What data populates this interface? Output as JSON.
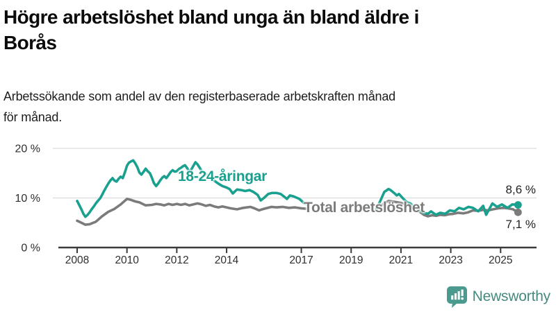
{
  "header": {
    "title_lines": [
      "Högre arbetslöshet bland unga än bland äldre i",
      "Borås"
    ],
    "subtitle_lines": [
      "Arbetssökande som andel av den registerbaserade arbetskraften månad",
      "för månad."
    ]
  },
  "chart_data": {
    "type": "line",
    "title": "Högre arbetslöshet bland unga än bland äldre i Borås",
    "subtitle": "Arbetssökande som andel av den registerbaserade arbetskraften månad för månad.",
    "unit": "%",
    "grid": true,
    "legend_position": "inline-labels-on-lines",
    "x_axis": {
      "range": [
        2007.25,
        2026.4
      ],
      "ticks": [
        {
          "year": 2008,
          "label": "2008"
        },
        {
          "year": 2010,
          "label": "2010"
        },
        {
          "year": 2012,
          "label": "2012"
        },
        {
          "year": 2014,
          "label": "2014"
        },
        {
          "year": 2017,
          "label": "2017"
        },
        {
          "year": 2019,
          "label": "2019"
        },
        {
          "year": 2021,
          "label": "2021"
        },
        {
          "year": 2023,
          "label": "2023"
        },
        {
          "year": 2025,
          "label": "2025"
        }
      ]
    },
    "y_axis": {
      "range": [
        0,
        20
      ],
      "ticks": [
        {
          "value": 0,
          "label": "0 %"
        },
        {
          "value": 10,
          "label": "10 %"
        },
        {
          "value": 20,
          "label": "20 %"
        }
      ]
    },
    "series": [
      {
        "name": "18-24-åringar",
        "color": "#1AA08F",
        "end_label": "8,6 %",
        "end_value": 8.6,
        "segments": [
          [
            [
              2008.0,
              9.4
            ],
            [
              2008.08,
              8.6
            ],
            [
              2008.17,
              7.7
            ],
            [
              2008.25,
              6.8
            ],
            [
              2008.33,
              6.2
            ],
            [
              2008.42,
              6.6
            ],
            [
              2008.5,
              7.1
            ],
            [
              2008.58,
              7.7
            ],
            [
              2008.67,
              8.3
            ],
            [
              2008.75,
              8.9
            ],
            [
              2008.83,
              9.4
            ],
            [
              2008.92,
              9.9
            ],
            [
              2009.0,
              10.6
            ],
            [
              2009.08,
              11.4
            ],
            [
              2009.17,
              12.2
            ],
            [
              2009.25,
              12.9
            ],
            [
              2009.33,
              13.5
            ],
            [
              2009.42,
              14.0
            ],
            [
              2009.5,
              13.5
            ],
            [
              2009.58,
              13.3
            ],
            [
              2009.67,
              13.9
            ],
            [
              2009.75,
              14.3
            ],
            [
              2009.83,
              14.0
            ],
            [
              2009.92,
              15.2
            ],
            [
              2010.0,
              16.5
            ],
            [
              2010.08,
              17.1
            ],
            [
              2010.17,
              17.4
            ],
            [
              2010.25,
              17.6
            ],
            [
              2010.33,
              17.0
            ],
            [
              2010.42,
              16.2
            ],
            [
              2010.5,
              15.1
            ],
            [
              2010.58,
              14.7
            ],
            [
              2010.67,
              15.3
            ],
            [
              2010.75,
              15.9
            ],
            [
              2010.83,
              15.4
            ],
            [
              2010.92,
              15.0
            ],
            [
              2011.0,
              14.1
            ],
            [
              2011.08,
              13.0
            ],
            [
              2011.17,
              12.4
            ],
            [
              2011.25,
              12.9
            ],
            [
              2011.33,
              13.5
            ],
            [
              2011.42,
              14.1
            ],
            [
              2011.5,
              14.4
            ],
            [
              2011.58,
              14.0
            ],
            [
              2011.67,
              14.6
            ],
            [
              2011.75,
              15.2
            ],
            [
              2011.83,
              15.6
            ],
            [
              2011.92,
              15.3
            ],
            [
              2012.0,
              15.4
            ],
            [
              2012.08,
              15.8
            ],
            [
              2012.17,
              16.1
            ],
            [
              2012.25,
              16.4
            ],
            [
              2012.33,
              16.6
            ],
            [
              2012.42,
              16.0
            ],
            [
              2012.5,
              15.3
            ],
            [
              2012.58,
              15.7
            ],
            [
              2012.67,
              16.5
            ],
            [
              2012.75,
              17.2
            ],
            [
              2012.83,
              16.8
            ],
            [
              2012.92,
              16.1
            ],
            [
              2013.0,
              15.4
            ],
            [
              2013.17,
              14.8
            ],
            [
              2013.33,
              14.1
            ],
            [
              2013.5,
              13.5
            ],
            [
              2013.67,
              12.9
            ],
            [
              2013.83,
              12.4
            ],
            [
              2014.0,
              12.1
            ],
            [
              2014.12,
              11.8
            ],
            [
              2014.25,
              10.9
            ],
            [
              2014.33,
              11.3
            ],
            [
              2014.42,
              11.7
            ],
            [
              2014.58,
              11.6
            ],
            [
              2014.75,
              11.4
            ],
            [
              2014.92,
              11.6
            ],
            [
              2015.08,
              11.2
            ],
            [
              2015.25,
              10.6
            ],
            [
              2015.37,
              9.5
            ],
            [
              2015.5,
              10.0
            ],
            [
              2015.67,
              10.8
            ],
            [
              2015.83,
              11.0
            ],
            [
              2016.0,
              11.0
            ],
            [
              2016.17,
              10.8
            ],
            [
              2016.33,
              10.2
            ],
            [
              2016.42,
              9.8
            ],
            [
              2016.54,
              10.5
            ],
            [
              2016.7,
              10.3
            ],
            [
              2016.92,
              9.8
            ],
            [
              2017.08,
              9.1
            ],
            [
              2017.25,
              8.6
            ]
          ],
          [
            [
              2020.0,
              7.7
            ],
            [
              2020.17,
              9.4
            ],
            [
              2020.33,
              11.2
            ],
            [
              2020.5,
              11.8
            ],
            [
              2020.58,
              11.6
            ],
            [
              2020.75,
              10.9
            ],
            [
              2020.83,
              10.5
            ],
            [
              2020.92,
              10.8
            ],
            [
              2021.08,
              9.9
            ],
            [
              2021.25,
              9.1
            ],
            [
              2021.38,
              8.9
            ],
            [
              2021.5,
              8.3
            ],
            [
              2021.75,
              7.5
            ],
            [
              2021.92,
              7.0
            ],
            [
              2022.08,
              6.8
            ],
            [
              2022.21,
              7.3
            ],
            [
              2022.4,
              6.6
            ],
            [
              2022.58,
              7.0
            ],
            [
              2022.77,
              6.8
            ],
            [
              2022.96,
              7.5
            ],
            [
              2023.15,
              7.3
            ],
            [
              2023.33,
              8.0
            ],
            [
              2023.52,
              7.7
            ],
            [
              2023.71,
              8.2
            ],
            [
              2023.89,
              8.0
            ],
            [
              2024.1,
              7.3
            ],
            [
              2024.3,
              8.4
            ],
            [
              2024.42,
              6.6
            ],
            [
              2024.67,
              8.9
            ],
            [
              2024.86,
              8.2
            ],
            [
              2025.05,
              8.7
            ],
            [
              2025.28,
              8.0
            ],
            [
              2025.47,
              8.7
            ],
            [
              2025.7,
              8.6
            ]
          ]
        ]
      },
      {
        "name": "Total arbetslöshet",
        "color": "#7B7B7B",
        "end_label": "7,1 %",
        "end_value": 7.1,
        "segments": [
          [
            [
              2008.0,
              5.4
            ],
            [
              2008.17,
              5.0
            ],
            [
              2008.33,
              4.6
            ],
            [
              2008.5,
              4.7
            ],
            [
              2008.75,
              5.2
            ],
            [
              2009.0,
              6.3
            ],
            [
              2009.25,
              7.2
            ],
            [
              2009.5,
              7.8
            ],
            [
              2009.75,
              8.7
            ],
            [
              2010.0,
              9.8
            ],
            [
              2010.17,
              9.6
            ],
            [
              2010.33,
              9.3
            ],
            [
              2010.5,
              9.1
            ],
            [
              2010.75,
              8.5
            ],
            [
              2011.0,
              8.6
            ],
            [
              2011.17,
              8.8
            ],
            [
              2011.33,
              8.7
            ],
            [
              2011.5,
              8.5
            ],
            [
              2011.67,
              8.8
            ],
            [
              2011.83,
              8.6
            ],
            [
              2012.0,
              8.8
            ],
            [
              2012.17,
              8.6
            ],
            [
              2012.33,
              8.8
            ],
            [
              2012.5,
              8.5
            ],
            [
              2012.67,
              8.7
            ],
            [
              2012.83,
              8.9
            ],
            [
              2013.0,
              8.7
            ],
            [
              2013.17,
              8.4
            ],
            [
              2013.33,
              8.6
            ],
            [
              2013.5,
              8.3
            ],
            [
              2013.67,
              8.1
            ],
            [
              2013.83,
              8.3
            ],
            [
              2014.0,
              8.1
            ],
            [
              2014.17,
              7.9
            ],
            [
              2014.42,
              7.7
            ],
            [
              2014.67,
              8.0
            ],
            [
              2014.96,
              8.2
            ],
            [
              2015.12,
              7.9
            ],
            [
              2015.3,
              7.5
            ],
            [
              2015.5,
              7.8
            ],
            [
              2015.8,
              8.2
            ],
            [
              2016.0,
              8.1
            ],
            [
              2016.25,
              8.2
            ],
            [
              2016.5,
              8.0
            ],
            [
              2016.75,
              8.1
            ],
            [
              2017.0,
              7.9
            ],
            [
              2017.25,
              7.8
            ]
          ],
          [
            [
              2020.0,
              7.7
            ],
            [
              2020.25,
              8.6
            ],
            [
              2020.5,
              9.4
            ],
            [
              2020.75,
              9.2
            ],
            [
              2021.0,
              9.0
            ],
            [
              2021.25,
              8.6
            ],
            [
              2021.5,
              8.0
            ],
            [
              2021.75,
              7.2
            ],
            [
              2021.92,
              6.6
            ],
            [
              2022.08,
              6.3
            ],
            [
              2022.25,
              6.5
            ],
            [
              2022.42,
              6.4
            ],
            [
              2022.58,
              6.6
            ],
            [
              2022.75,
              6.5
            ],
            [
              2022.92,
              6.7
            ],
            [
              2023.1,
              6.8
            ],
            [
              2023.3,
              7.0
            ],
            [
              2023.5,
              6.9
            ],
            [
              2023.7,
              7.1
            ],
            [
              2023.89,
              7.5
            ],
            [
              2024.1,
              7.4
            ],
            [
              2024.3,
              7.6
            ],
            [
              2024.5,
              7.5
            ],
            [
              2024.7,
              7.7
            ],
            [
              2024.9,
              7.9
            ],
            [
              2025.1,
              8.0
            ],
            [
              2025.3,
              7.9
            ],
            [
              2025.5,
              7.7
            ],
            [
              2025.7,
              7.1
            ]
          ]
        ]
      }
    ]
  },
  "footer": {
    "brand": "Newsworthy"
  },
  "colors": {
    "accent_teal": "#1AA08F",
    "line_gray": "#7B7B7B",
    "grid": "#DCDCDC",
    "axis": "#3A3A3A",
    "tick_text": "#2E2E2E",
    "logo_teal": "#4A9A90",
    "logo_text": "#45897F"
  }
}
